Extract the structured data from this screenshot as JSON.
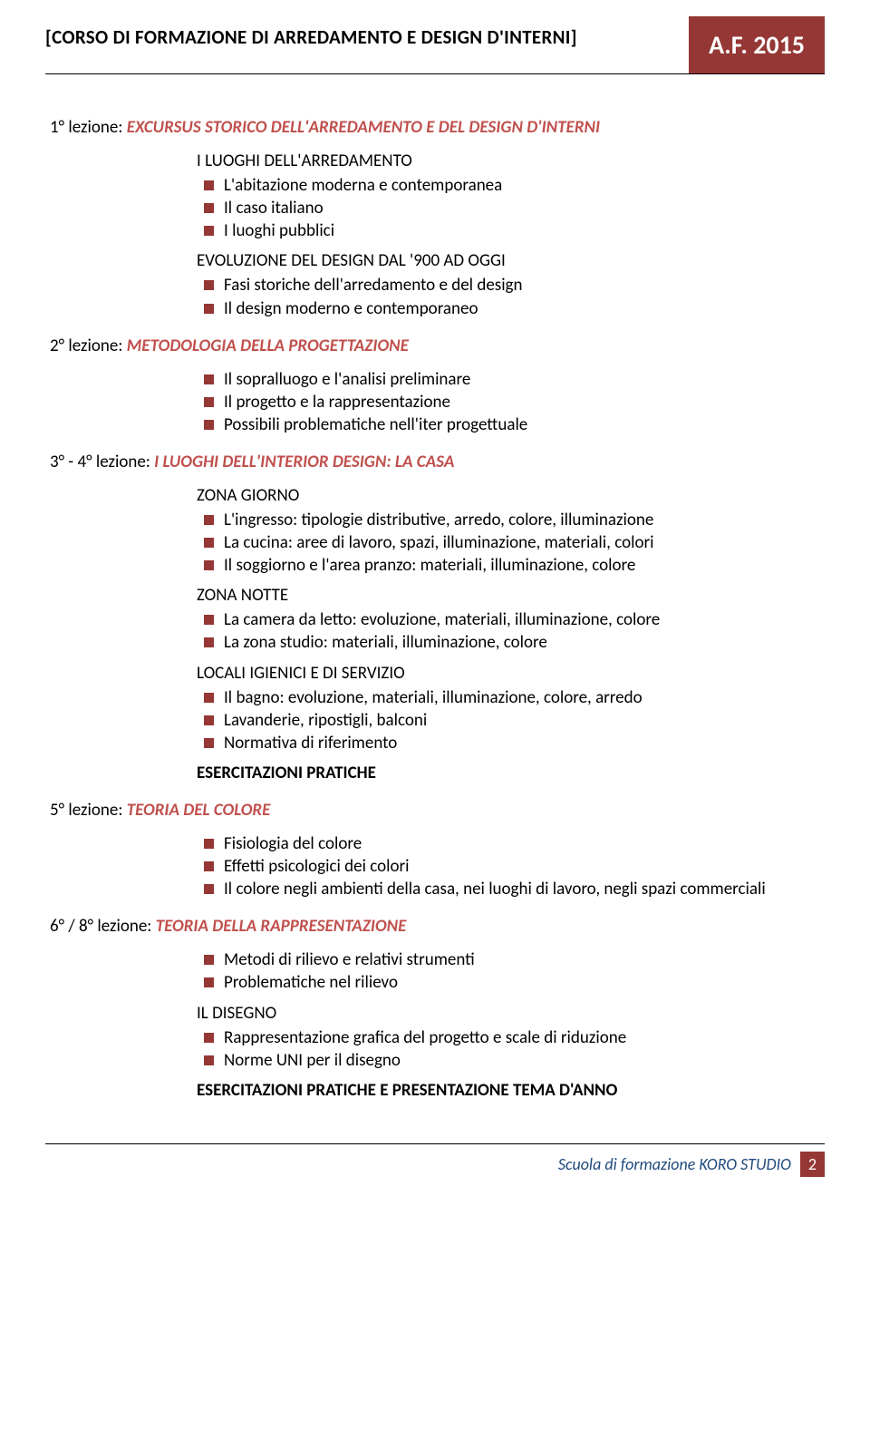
{
  "colors": {
    "accent_red": "#953735",
    "title_red": "#c0504d",
    "footer_blue": "#1f497d",
    "text": "#000000",
    "bg": "#ffffff"
  },
  "header": {
    "title": "[CORSO DI FORMAZIONE DI ARREDAMENTO E DESIGN D'INTERNI]",
    "year": "A.F. 2015"
  },
  "lez1": {
    "label": "1° lezione: ",
    "title": "EXCURSUS STORICO DELL'ARREDAMENTO E DEL DESIGN D'INTERNI",
    "sec1_head": "I LUOGHI DELL'ARREDAMENTO",
    "sec1_items": {
      "0": "L'abitazione moderna e contemporanea",
      "1": "Il caso italiano",
      "2": "I luoghi pubblici"
    },
    "sec2_head": "EVOLUZIONE DEL DESIGN DAL '900 AD OGGI",
    "sec2_items": {
      "0": "Fasi storiche dell'arredamento e del design",
      "1": "Il design moderno e contemporaneo"
    }
  },
  "lez2": {
    "label": "2° lezione: ",
    "title": "METODOLOGIA DELLA PROGETTAZIONE",
    "items": {
      "0": "Il sopralluogo e l'analisi preliminare",
      "1": "Il progetto e la rappresentazione",
      "2": "Possibili problematiche nell'iter progettuale"
    }
  },
  "lez3": {
    "label": "3° - 4° lezione: ",
    "title": "I LUOGHI DELL'INTERIOR DESIGN: LA CASA",
    "sec1_head": "ZONA GIORNO",
    "sec1_items": {
      "0": "L'ingresso: tipologie distributive, arredo, colore, illuminazione",
      "1": "La cucina: aree di lavoro, spazi, illuminazione, materiali, colori",
      "2": "Il soggiorno e l'area pranzo: materiali, illuminazione, colore"
    },
    "sec2_head": "ZONA NOTTE",
    "sec2_items": {
      "0": "La camera da letto: evoluzione, materiali, illuminazione, colore",
      "1": "La zona studio: materiali, illuminazione, colore"
    },
    "sec3_head": "LOCALI IGIENICI E DI SERVIZIO",
    "sec3_items": {
      "0": "Il bagno: evoluzione, materiali, illuminazione, colore, arredo",
      "1": "Lavanderie, ripostigli, balconi",
      "2": "Normativa di riferimento"
    },
    "sec4_head": "ESERCITAZIONI PRATICHE"
  },
  "lez5": {
    "label": "5° lezione: ",
    "title": "TEORIA DEL COLORE",
    "items": {
      "0": "Fisiologia del colore",
      "1": "Effetti psicologici dei colori",
      "2": "Il colore negli ambienti della casa, nei luoghi di lavoro, negli spazi commerciali"
    }
  },
  "lez6": {
    "label": "6° / 8° lezione: ",
    "title": "TEORIA DELLA RAPPRESENTAZIONE",
    "sec1_items": {
      "0": "Metodi di rilievo e relativi strumenti",
      "1": "Problematiche nel rilievo"
    },
    "sec2_head": "IL DISEGNO",
    "sec2_items": {
      "0": "Rappresentazione grafica del progetto e scale di riduzione",
      "1": "Norme UNI per il disegno"
    },
    "sec3_head": "ESERCITAZIONI PRATICHE E PRESENTAZIONE TEMA D'ANNO"
  },
  "footer": {
    "text": "Scuola di formazione KORO STUDIO",
    "page": "2"
  }
}
